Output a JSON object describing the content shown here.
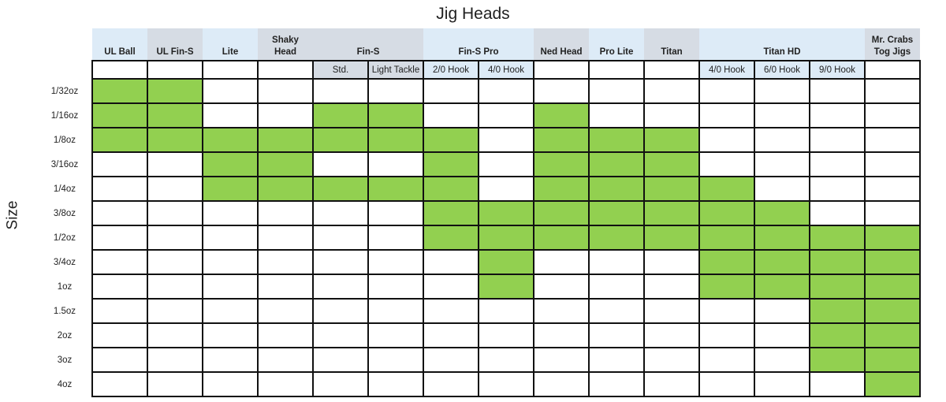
{
  "chart_data": {
    "type": "table",
    "title": "Jig Heads",
    "ylabel": "Size",
    "fill_color": "#92d050",
    "header_colors": {
      "blue": "#ddebf7",
      "gray": "#d6dce4"
    },
    "groups": [
      {
        "label": "UL Ball",
        "span": 1,
        "color": "blue"
      },
      {
        "label": "UL Fin-S",
        "span": 1,
        "color": "gray"
      },
      {
        "label": "Lite",
        "span": 1,
        "color": "blue"
      },
      {
        "label": "Shaky Head",
        "span": 1,
        "color": "gray"
      },
      {
        "label": "Fin-S",
        "span": 2,
        "color": "gray"
      },
      {
        "label": "Fin-S Pro",
        "span": 2,
        "color": "blue"
      },
      {
        "label": "Ned Head",
        "span": 1,
        "color": "gray"
      },
      {
        "label": "Pro Lite",
        "span": 1,
        "color": "blue"
      },
      {
        "label": "Titan",
        "span": 1,
        "color": "gray"
      },
      {
        "label": "Titan HD",
        "span": 3,
        "color": "blue"
      },
      {
        "label": "Mr. Crabs Tog Jigs",
        "span": 1,
        "color": "gray"
      }
    ],
    "subcolumns": [
      {
        "label": "",
        "color": ""
      },
      {
        "label": "",
        "color": ""
      },
      {
        "label": "",
        "color": ""
      },
      {
        "label": "",
        "color": ""
      },
      {
        "label": "Std.",
        "color": "gray"
      },
      {
        "label": "Light Tackle",
        "color": "gray"
      },
      {
        "label": "2/0 Hook",
        "color": "blue"
      },
      {
        "label": "4/0 Hook",
        "color": "blue"
      },
      {
        "label": "",
        "color": ""
      },
      {
        "label": "",
        "color": ""
      },
      {
        "label": "",
        "color": ""
      },
      {
        "label": "4/0 Hook",
        "color": "blue"
      },
      {
        "label": "6/0 Hook",
        "color": "blue"
      },
      {
        "label": "9/0 Hook",
        "color": "blue"
      },
      {
        "label": "",
        "color": ""
      }
    ],
    "rows": [
      {
        "size": "1/32oz",
        "available": [
          1,
          1,
          0,
          0,
          0,
          0,
          0,
          0,
          0,
          0,
          0,
          0,
          0,
          0,
          0
        ]
      },
      {
        "size": "1/16oz",
        "available": [
          1,
          1,
          0,
          0,
          1,
          1,
          0,
          0,
          1,
          0,
          0,
          0,
          0,
          0,
          0
        ]
      },
      {
        "size": "1/8oz",
        "available": [
          1,
          1,
          1,
          1,
          1,
          1,
          1,
          0,
          1,
          1,
          1,
          0,
          0,
          0,
          0
        ]
      },
      {
        "size": "3/16oz",
        "available": [
          0,
          0,
          1,
          1,
          0,
          0,
          1,
          0,
          1,
          1,
          1,
          0,
          0,
          0,
          0
        ]
      },
      {
        "size": "1/4oz",
        "available": [
          0,
          0,
          1,
          1,
          1,
          1,
          1,
          0,
          1,
          1,
          1,
          1,
          0,
          0,
          0
        ]
      },
      {
        "size": "3/8oz",
        "available": [
          0,
          0,
          0,
          0,
          0,
          0,
          1,
          1,
          1,
          1,
          1,
          1,
          1,
          0,
          0
        ]
      },
      {
        "size": "1/2oz",
        "available": [
          0,
          0,
          0,
          0,
          0,
          0,
          1,
          1,
          1,
          1,
          1,
          1,
          1,
          1,
          1
        ]
      },
      {
        "size": "3/4oz",
        "available": [
          0,
          0,
          0,
          0,
          0,
          0,
          0,
          1,
          0,
          0,
          0,
          1,
          1,
          1,
          1
        ]
      },
      {
        "size": "1oz",
        "available": [
          0,
          0,
          0,
          0,
          0,
          0,
          0,
          1,
          0,
          0,
          0,
          1,
          1,
          1,
          1
        ]
      },
      {
        "size": "1.5oz",
        "available": [
          0,
          0,
          0,
          0,
          0,
          0,
          0,
          0,
          0,
          0,
          0,
          0,
          0,
          1,
          1
        ]
      },
      {
        "size": "2oz",
        "available": [
          0,
          0,
          0,
          0,
          0,
          0,
          0,
          0,
          0,
          0,
          0,
          0,
          0,
          1,
          1
        ]
      },
      {
        "size": "3oz",
        "available": [
          0,
          0,
          0,
          0,
          0,
          0,
          0,
          0,
          0,
          0,
          0,
          0,
          0,
          1,
          1
        ]
      },
      {
        "size": "4oz",
        "available": [
          0,
          0,
          0,
          0,
          0,
          0,
          0,
          0,
          0,
          0,
          0,
          0,
          0,
          0,
          1
        ]
      }
    ]
  }
}
